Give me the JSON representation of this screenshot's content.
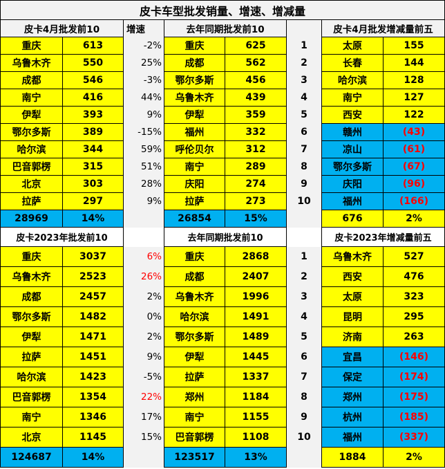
{
  "title": "皮卡车型批发销量、增速、增减量",
  "colors": {
    "yellow": "#ffff00",
    "blue": "#00b0f0",
    "red": "#ff0000",
    "gray": "#f2f2f2"
  },
  "section1": {
    "header_left": "皮卡4月批发前10",
    "growth_header": "增速",
    "header_mid": "去年同期批发前10",
    "header_right": "皮卡4月批发增减量前五",
    "rows": [
      {
        "city": "重庆",
        "value": "613",
        "growth": "-2%",
        "prev_city": "重庆",
        "prev_value": "625",
        "rank": "1",
        "chg_city": "太原",
        "chg_value": "155"
      },
      {
        "city": "乌鲁木齐",
        "value": "550",
        "growth": "25%",
        "prev_city": "成都",
        "prev_value": "562",
        "rank": "2",
        "chg_city": "长春",
        "chg_value": "144"
      },
      {
        "city": "成都",
        "value": "546",
        "growth": "-3%",
        "prev_city": "鄂尔多斯",
        "prev_value": "456",
        "rank": "3",
        "chg_city": "哈尔滨",
        "chg_value": "128"
      },
      {
        "city": "南宁",
        "value": "416",
        "growth": "44%",
        "prev_city": "乌鲁木齐",
        "prev_value": "439",
        "rank": "4",
        "chg_city": "南宁",
        "chg_value": "127"
      },
      {
        "city": "伊犁",
        "value": "393",
        "growth": "9%",
        "prev_city": "伊犁",
        "prev_value": "359",
        "rank": "5",
        "chg_city": "西安",
        "chg_value": "122"
      },
      {
        "city": "鄂尔多斯",
        "value": "389",
        "growth": "-15%",
        "prev_city": "福州",
        "prev_value": "332",
        "rank": "6",
        "chg_city": "赣州",
        "chg_value": "(43)"
      },
      {
        "city": "哈尔滨",
        "value": "344",
        "growth": "59%",
        "prev_city": "呼伦贝尔",
        "prev_value": "312",
        "rank": "7",
        "chg_city": "凉山",
        "chg_value": "(61)"
      },
      {
        "city": "巴音郭楞",
        "value": "315",
        "growth": "51%",
        "prev_city": "南宁",
        "prev_value": "289",
        "rank": "8",
        "chg_city": "鄂尔多斯",
        "chg_value": "(67)"
      },
      {
        "city": "北京",
        "value": "303",
        "growth": "28%",
        "prev_city": "庆阳",
        "prev_value": "274",
        "rank": "9",
        "chg_city": "庆阳",
        "chg_value": "(96)"
      },
      {
        "city": "拉萨",
        "value": "297",
        "growth": "9%",
        "prev_city": "拉萨",
        "prev_value": "273",
        "rank": "10",
        "chg_city": "福州",
        "chg_value": "(166)"
      }
    ],
    "total": {
      "value": "28969",
      "growth": "14%",
      "prev_value": "26854",
      "prev_growth": "15%",
      "chg_value": "676",
      "chg_growth": "2%"
    }
  },
  "section2": {
    "header_left": "皮卡2023年批发前10",
    "header_mid": "去年同期批发前10",
    "header_right": "皮卡2023年增减量前五",
    "rows": [
      {
        "city": "重庆",
        "value": "3037",
        "growth": "6%",
        "growth_red": true,
        "prev_city": "重庆",
        "prev_value": "2868",
        "rank": "1",
        "chg_city": "乌鲁木齐",
        "chg_value": "527"
      },
      {
        "city": "乌鲁木齐",
        "value": "2523",
        "growth": "26%",
        "growth_red": true,
        "prev_city": "成都",
        "prev_value": "2407",
        "rank": "2",
        "chg_city": "西安",
        "chg_value": "476"
      },
      {
        "city": "成都",
        "value": "2457",
        "growth": "2%",
        "prev_city": "乌鲁木齐",
        "prev_value": "1996",
        "rank": "3",
        "chg_city": "太原",
        "chg_value": "323"
      },
      {
        "city": "鄂尔多斯",
        "value": "1482",
        "growth": "0%",
        "prev_city": "哈尔滨",
        "prev_value": "1491",
        "rank": "4",
        "chg_city": "昆明",
        "chg_value": "295"
      },
      {
        "city": "伊犁",
        "value": "1471",
        "growth": "2%",
        "prev_city": "鄂尔多斯",
        "prev_value": "1489",
        "rank": "5",
        "chg_city": "济南",
        "chg_value": "263"
      },
      {
        "city": "拉萨",
        "value": "1451",
        "growth": "9%",
        "prev_city": "伊犁",
        "prev_value": "1445",
        "rank": "6",
        "chg_city": "宜昌",
        "chg_value": "(146)"
      },
      {
        "city": "哈尔滨",
        "value": "1423",
        "growth": "-5%",
        "prev_city": "拉萨",
        "prev_value": "1337",
        "rank": "7",
        "chg_city": "保定",
        "chg_value": "(174)"
      },
      {
        "city": "巴音郭楞",
        "value": "1354",
        "growth": "22%",
        "growth_red": true,
        "prev_city": "郑州",
        "prev_value": "1184",
        "rank": "8",
        "chg_city": "郑州",
        "chg_value": "(175)"
      },
      {
        "city": "南宁",
        "value": "1346",
        "growth": "17%",
        "prev_city": "南宁",
        "prev_value": "1155",
        "rank": "9",
        "chg_city": "杭州",
        "chg_value": "(185)"
      },
      {
        "city": "北京",
        "value": "1145",
        "growth": "15%",
        "prev_city": "巴音郭楞",
        "prev_value": "1108",
        "rank": "10",
        "chg_city": "福州",
        "chg_value": "(337)"
      }
    ],
    "total": {
      "value": "124687",
      "growth": "14%",
      "prev_value": "123517",
      "prev_growth": "13%",
      "chg_value": "1884",
      "chg_growth": "2%"
    }
  }
}
